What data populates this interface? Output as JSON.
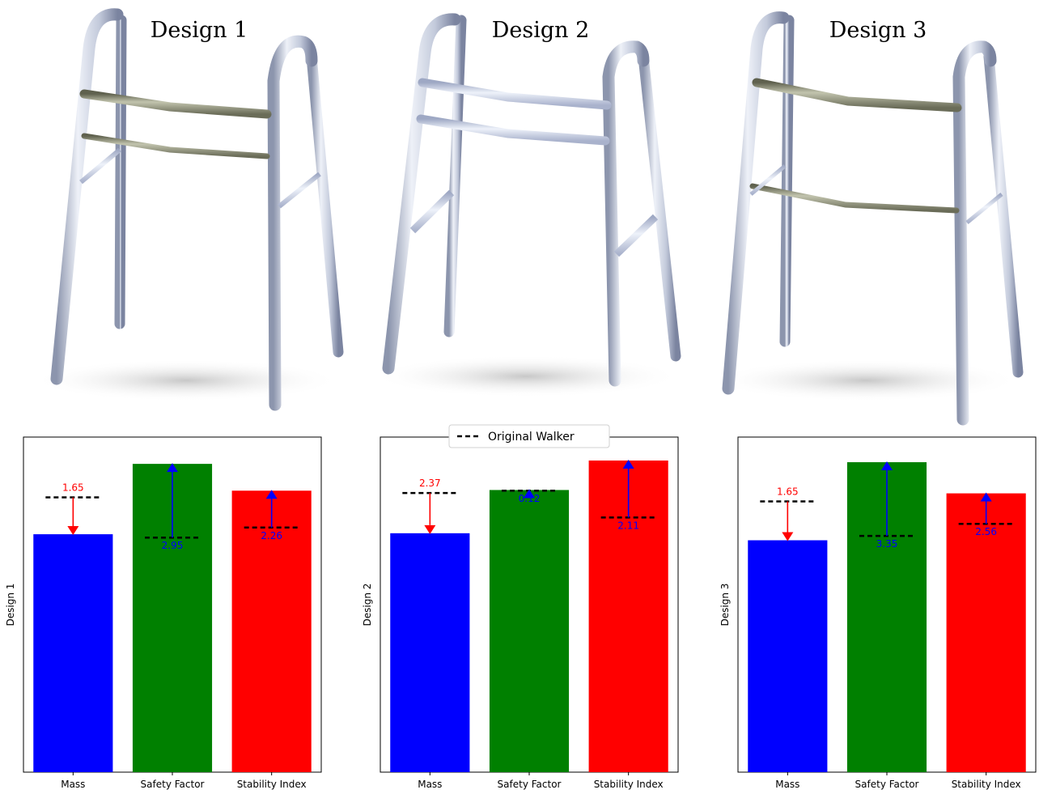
{
  "chart_data": [
    {
      "type": "bar",
      "image_title": "Design 1",
      "ylabel": "Design 1",
      "categories": [
        "Mass",
        "Safety Factor",
        "Stability Index"
      ],
      "bar_colors": [
        "#0000ff",
        "#008000",
        "#ff0000"
      ],
      "original_values": [
        0.82,
        0.7,
        0.73
      ],
      "design_values": [
        0.71,
        0.92,
        0.84
      ],
      "annotations": [
        "1.65",
        "2.95",
        "2.26"
      ],
      "annotation_colors": [
        "#ff0000",
        "#0000ff",
        "#0000ff"
      ],
      "arrow_directions": [
        "down",
        "up",
        "up"
      ],
      "ylim": [
        0,
        1
      ],
      "legend": null
    },
    {
      "type": "bar",
      "image_title": "Design 2",
      "ylabel": "Design 2",
      "categories": [
        "Mass",
        "Safety Factor",
        "Stability Index"
      ],
      "bar_colors": [
        "#0000ff",
        "#008000",
        "#ff0000"
      ],
      "original_values": [
        0.833,
        0.84,
        0.76
      ],
      "design_values": [
        0.713,
        0.842,
        0.93
      ],
      "annotations": [
        "2.37",
        "0.12",
        "2.11"
      ],
      "annotation_colors": [
        "#ff0000",
        "#0000ff",
        "#0000ff"
      ],
      "arrow_directions": [
        "down",
        "up",
        "up"
      ],
      "ylim": [
        0,
        1
      ],
      "legend": {
        "label": "Original Walker",
        "position": "top-center"
      }
    },
    {
      "type": "bar",
      "image_title": "Design 3",
      "ylabel": "Design 3",
      "categories": [
        "Mass",
        "Safety Factor",
        "Stability Index"
      ],
      "bar_colors": [
        "#0000ff",
        "#008000",
        "#ff0000"
      ],
      "original_values": [
        0.808,
        0.705,
        0.741
      ],
      "design_values": [
        0.692,
        0.925,
        0.832
      ],
      "annotations": [
        "1.65",
        "3.35",
        "2.56"
      ],
      "annotation_colors": [
        "#ff0000",
        "#0000ff",
        "#0000ff"
      ],
      "arrow_directions": [
        "down",
        "up",
        "up"
      ],
      "ylim": [
        0,
        1
      ],
      "legend": null
    }
  ],
  "walkers": [
    {
      "title": "Design 1",
      "upper_bar_color": "#8a8c78",
      "lower_bar_color": "#8a8c78"
    },
    {
      "title": "Design 2",
      "upper_bar_color": "#c9d3e8",
      "lower_bar_color": "#c9d3e8"
    },
    {
      "title": "Design 3",
      "upper_bar_color": "#8a8c78",
      "lower_bar_color": "#8a8c78"
    }
  ]
}
